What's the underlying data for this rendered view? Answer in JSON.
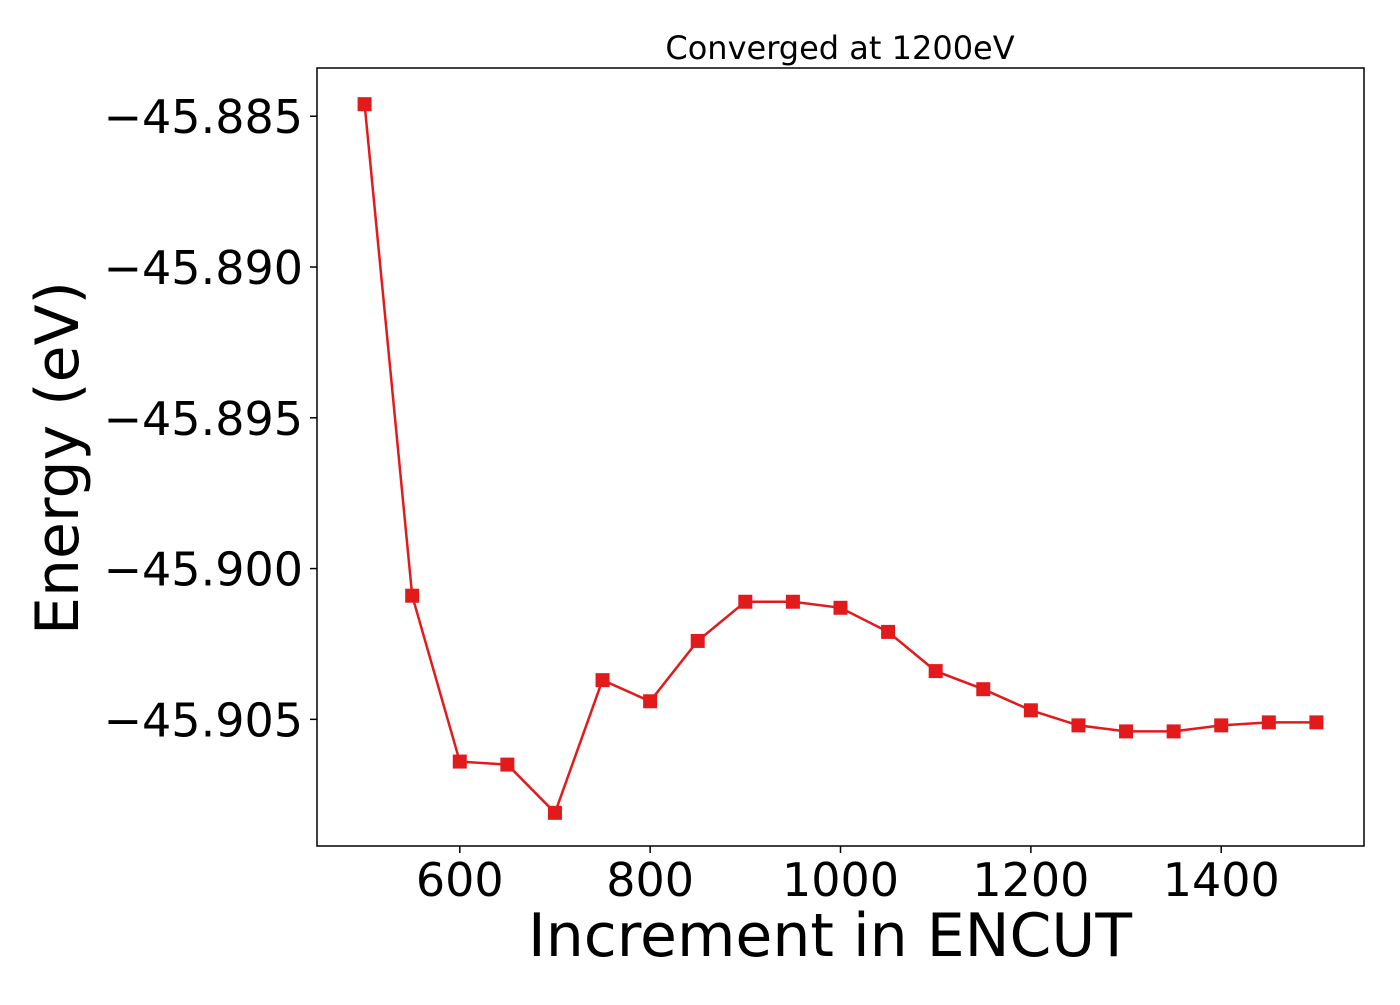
{
  "chart_data": {
    "type": "line",
    "title": "Converged at 1200eV",
    "xlabel": "Increment in ENCUT",
    "ylabel": "Energy (eV)",
    "xlim": [
      450,
      1550
    ],
    "ylim": [
      -45.9092,
      -45.8834
    ],
    "xticks": [
      600,
      800,
      1000,
      1200,
      1400
    ],
    "xtick_labels": [
      "600",
      "800",
      "1000",
      "1200",
      "1400"
    ],
    "yticks": [
      -45.885,
      -45.89,
      -45.895,
      -45.9,
      -45.905
    ],
    "ytick_labels": [
      "−45.885",
      "−45.890",
      "−45.895",
      "−45.900",
      "−45.905"
    ],
    "grid": false,
    "series": [
      {
        "color": "#e31a1c",
        "marker": "square",
        "x": [
          500,
          550,
          600,
          650,
          700,
          750,
          800,
          850,
          900,
          950,
          1000,
          1050,
          1100,
          1150,
          1200,
          1250,
          1300,
          1350,
          1400,
          1450,
          1500
        ],
        "y": [
          -45.8846,
          -45.9009,
          -45.9064,
          -45.9065,
          -45.9081,
          -45.9037,
          -45.9044,
          -45.9024,
          -45.9011,
          -45.9011,
          -45.9013,
          -45.9021,
          -45.9034,
          -45.904,
          -45.9047,
          -45.9052,
          -45.9054,
          -45.9054,
          -45.9052,
          -45.9051,
          -45.9051
        ]
      }
    ]
  }
}
